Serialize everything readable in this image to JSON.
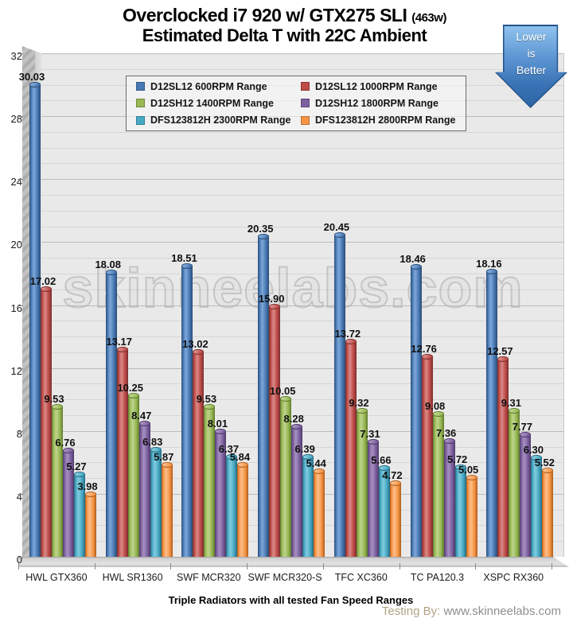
{
  "header": {
    "title": "Overclocked i7 920 w/ GTX275 SLI",
    "title_suffix": "(463w)",
    "subtitle": "Estimated Delta T with 22C Ambient"
  },
  "annotation_arrow": {
    "lines": [
      "Lower",
      "is",
      "Better"
    ],
    "fill_top": "#8fc2ee",
    "fill_bottom": "#2e66a5"
  },
  "watermark": "skinneelabs.com",
  "footer": {
    "label": "Testing By:",
    "url": "www.skinneelabs.com"
  },
  "chart_data": {
    "type": "bar",
    "style": "3d-cylinder",
    "title": "Overclocked i7 920 w/ GTX275 SLI (463w)",
    "subtitle": "Estimated Delta T with 22C Ambient",
    "xlabel": "Triple Radiators with all tested Fan Speed Ranges",
    "ylabel": "",
    "ylim": [
      0,
      32
    ],
    "y_major_unit": 4,
    "y_minor_unit": 1,
    "grid": true,
    "legend_position": "top-center",
    "value_format": "2dp",
    "plot_bg": "#e9e9e9",
    "categories": [
      "HWL GTX360",
      "HWL SR1360",
      "SWF MCR320",
      "SWF MCR320-S",
      "TFC XC360",
      "TC PA120.3",
      "XSPC RX360"
    ],
    "series": [
      {
        "name": "D12SL12 600RPM Range",
        "color": "#4879B4",
        "color_light": "#7FA8D9",
        "color_dark": "#2B4C74",
        "values": [
          30.03,
          18.08,
          18.51,
          20.35,
          20.45,
          18.46,
          18.16
        ]
      },
      {
        "name": "D12SL12 1000RPM Range",
        "color": "#BE4B48",
        "color_light": "#D98B89",
        "color_dark": "#7C2E2C",
        "values": [
          17.02,
          13.17,
          13.02,
          15.9,
          13.72,
          12.76,
          12.57
        ]
      },
      {
        "name": "D12SH12 1400RPM Range",
        "color": "#98B954",
        "color_light": "#BDD48D",
        "color_dark": "#5F7B2E",
        "values": [
          9.53,
          10.25,
          9.53,
          10.05,
          9.32,
          9.08,
          9.31
        ]
      },
      {
        "name": "D12SH12 1800RPM Range",
        "color": "#7D60A0",
        "color_light": "#A791C1",
        "color_dark": "#4E3A68",
        "values": [
          6.76,
          8.47,
          8.01,
          8.28,
          7.31,
          7.36,
          7.77
        ]
      },
      {
        "name": "DFS123812H 2300RPM Range",
        "color": "#46AAC5",
        "color_light": "#83CBDD",
        "color_dark": "#27697E",
        "values": [
          5.27,
          6.83,
          6.37,
          6.39,
          5.66,
          5.72,
          6.3
        ]
      },
      {
        "name": "DFS123812H 2800RPM Range",
        "color": "#F79545",
        "color_light": "#FBBE8C",
        "color_dark": "#AE5D1B",
        "values": [
          3.98,
          5.87,
          5.84,
          5.44,
          4.72,
          5.05,
          5.52
        ]
      }
    ]
  }
}
